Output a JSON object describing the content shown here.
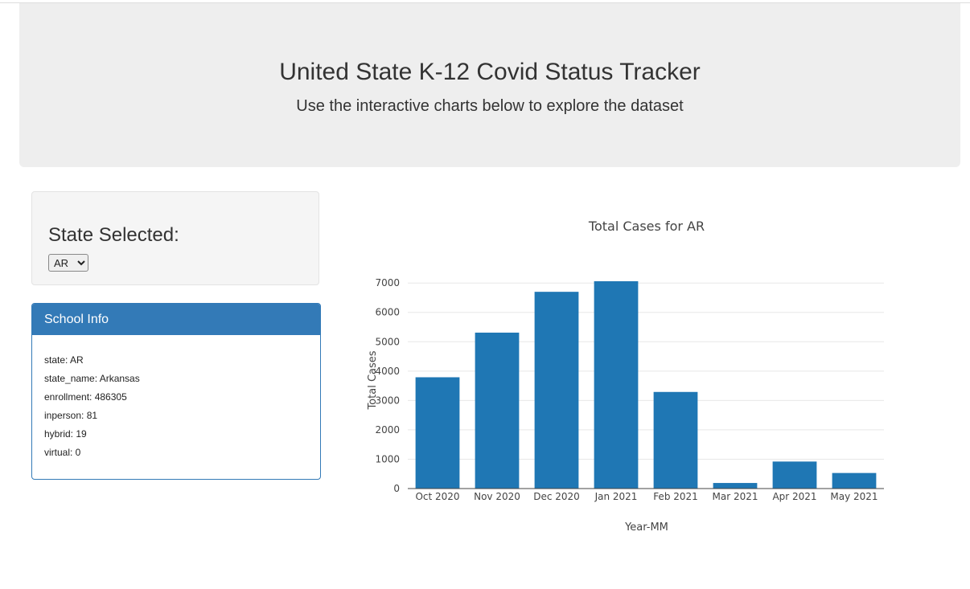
{
  "header": {
    "title": "United State K-12 Covid Status Tracker",
    "subtitle": "Use the interactive charts below to explore the dataset"
  },
  "state_selector": {
    "label": "State Selected:",
    "selected": "AR"
  },
  "school_info": {
    "heading": "School Info",
    "rows": [
      "state: AR",
      "state_name: Arkansas",
      "enrollment: 486305",
      "inperson: 81",
      "hybrid: 19",
      "virtual: 0"
    ]
  },
  "chart_data": {
    "type": "bar",
    "title": "Total Cases for AR",
    "xlabel": "Year-MM",
    "ylabel": "Total Cases",
    "categories": [
      "Oct 2020",
      "Nov 2020",
      "Dec 2020",
      "Jan 2021",
      "Feb 2021",
      "Mar 2021",
      "Apr 2021",
      "May 2021"
    ],
    "values": [
      3790,
      5310,
      6700,
      7060,
      3290,
      190,
      920,
      530
    ],
    "yticks": [
      0,
      1000,
      2000,
      3000,
      4000,
      5000,
      6000,
      7000
    ],
    "ylim": [
      0,
      7060
    ],
    "grid": true,
    "bar_color": "#1f77b4"
  }
}
